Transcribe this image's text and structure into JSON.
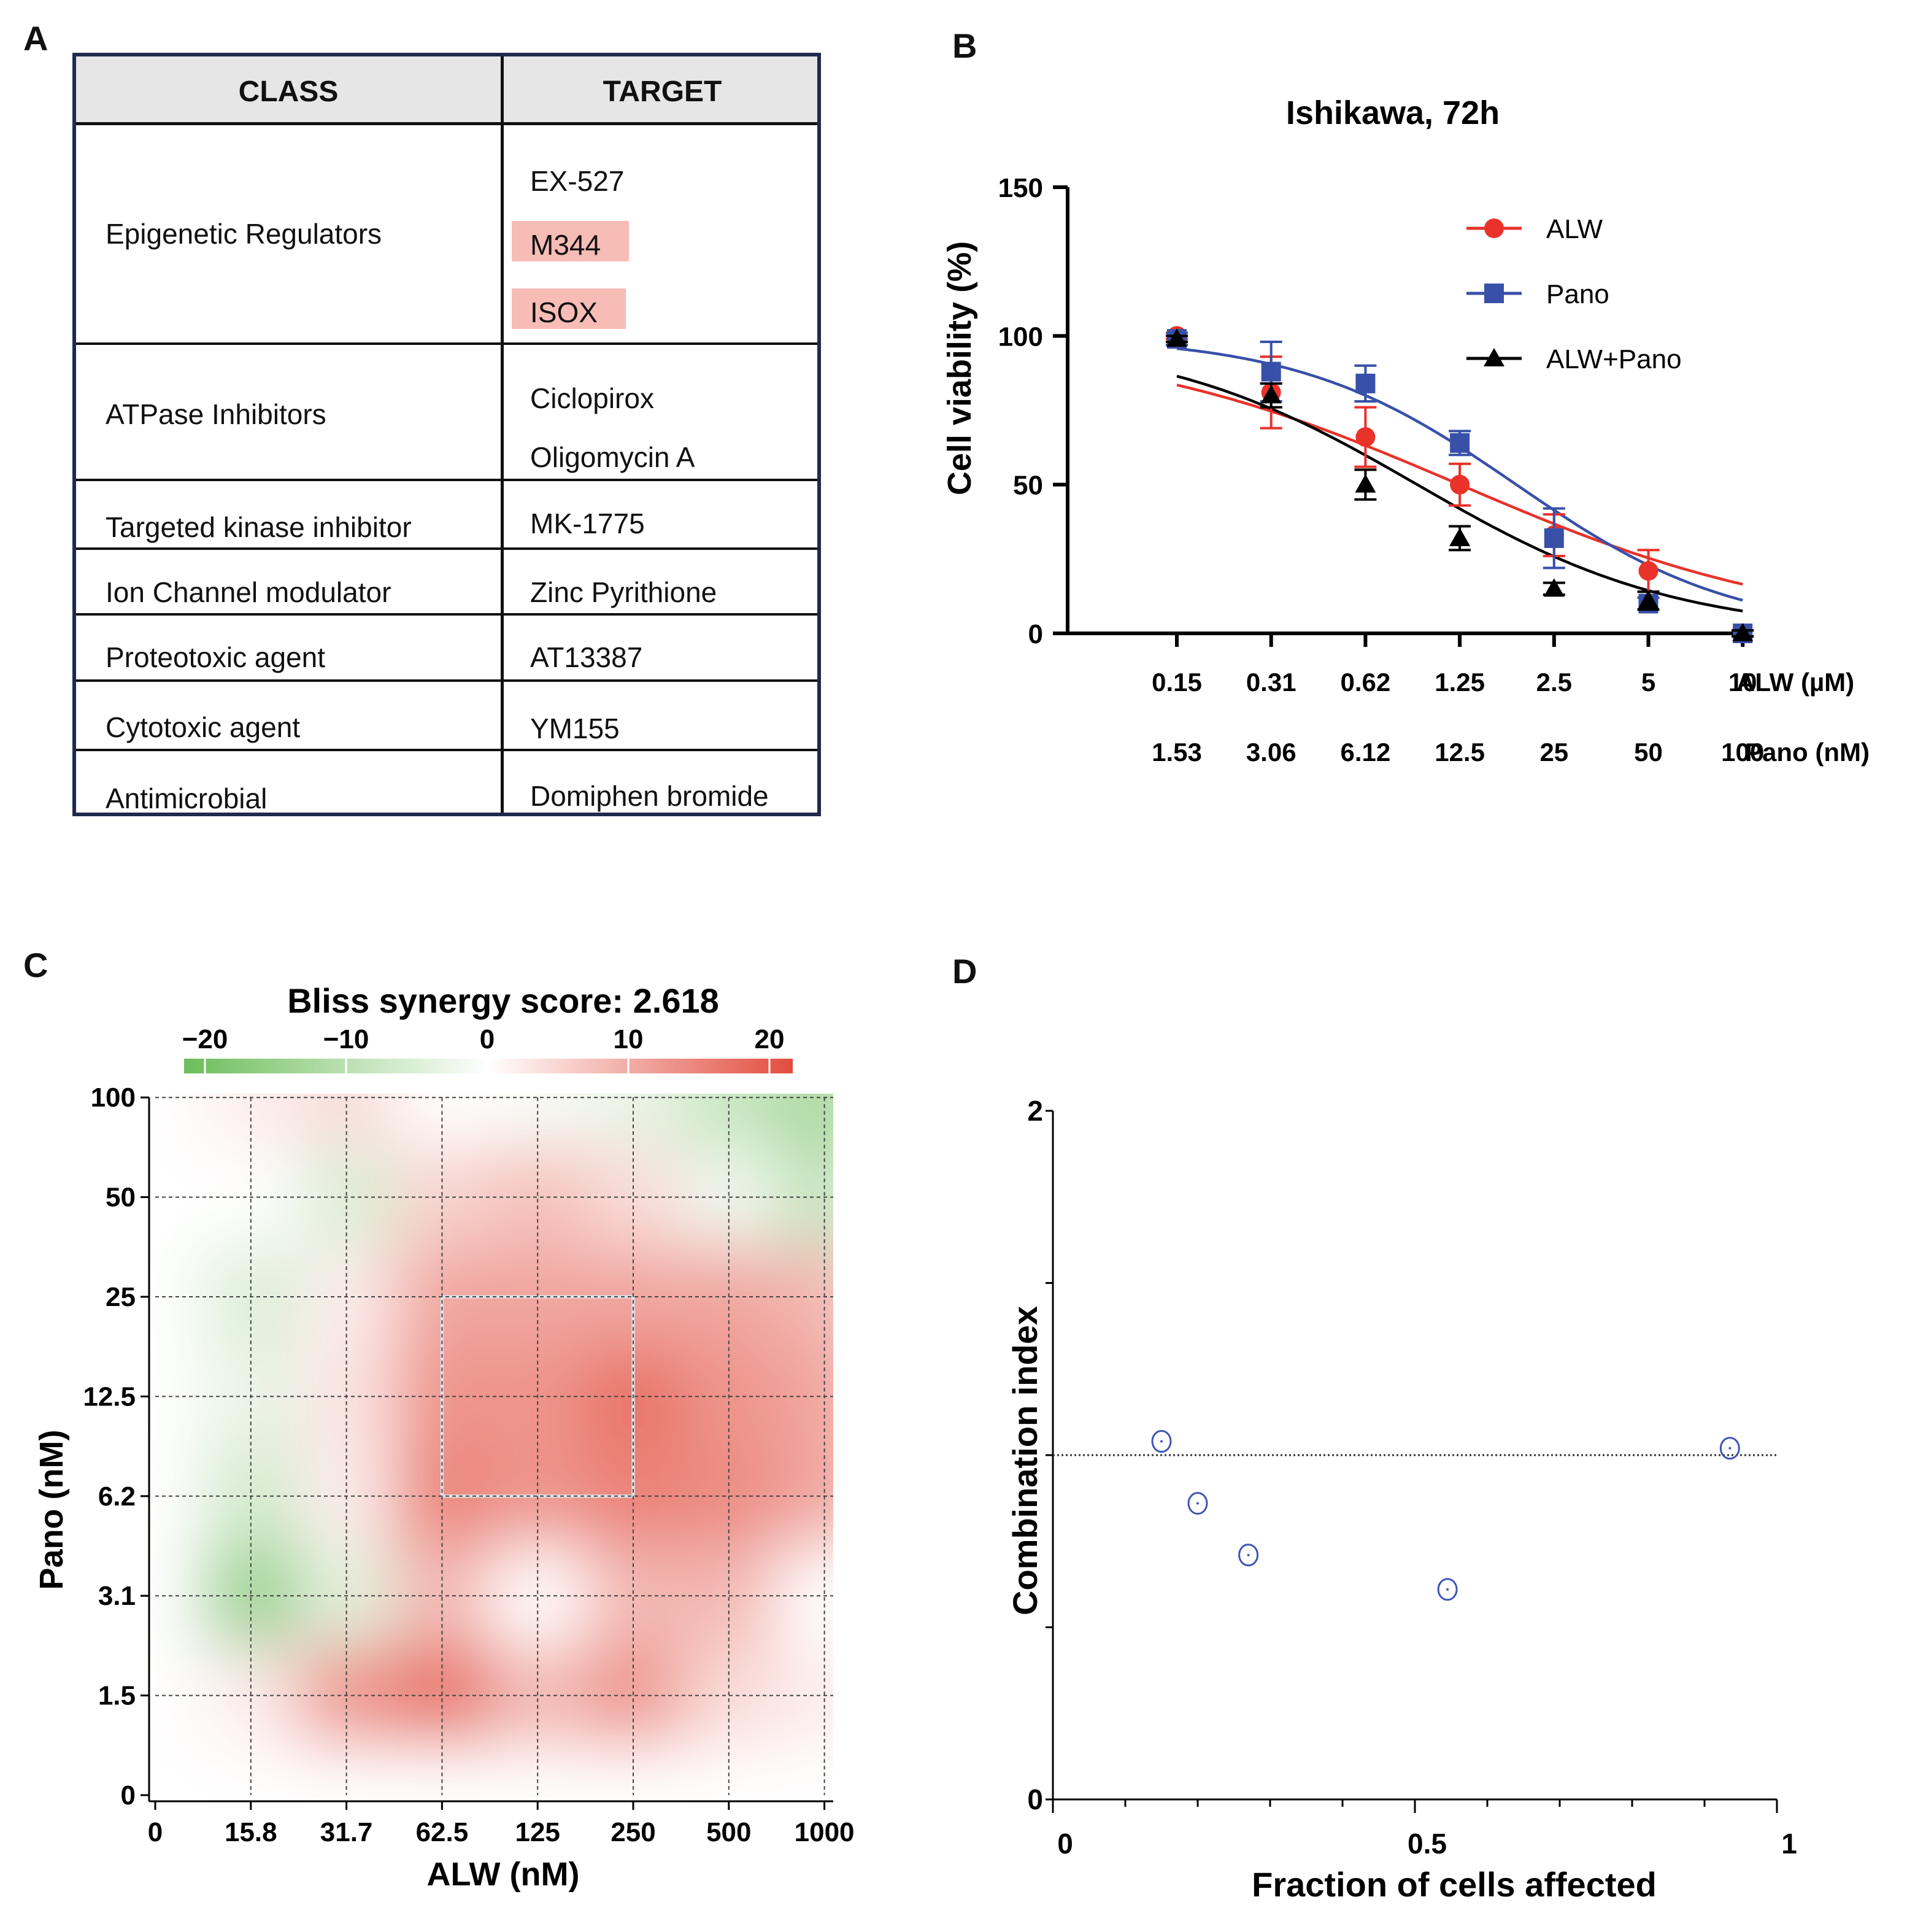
{
  "panels": {
    "a": "A",
    "b": "B",
    "c": "C",
    "d": "D"
  },
  "table": {
    "headers": {
      "class": "CLASS",
      "target": "TARGET"
    },
    "rows": [
      {
        "class": "Epigenetic Regulators",
        "targets": [
          "EX-527",
          "M344",
          "ISOX"
        ],
        "highlighted": [
          false,
          true,
          true
        ]
      },
      {
        "class": "ATPase Inhibitors",
        "targets": [
          "Ciclopirox",
          "Oligomycin A"
        ],
        "highlighted": [
          false,
          false
        ]
      },
      {
        "class": "Targeted kinase inhibitor",
        "targets": [
          "MK-1775"
        ],
        "highlighted": [
          false
        ]
      },
      {
        "class": "Ion Channel modulator",
        "targets": [
          "Zinc Pyrithione"
        ],
        "highlighted": [
          false
        ]
      },
      {
        "class": "Proteotoxic agent",
        "targets": [
          "AT13387"
        ],
        "highlighted": [
          false
        ]
      },
      {
        "class": "Cytotoxic agent",
        "targets": [
          "YM155"
        ],
        "highlighted": [
          false
        ]
      },
      {
        "class": "Antimicrobial",
        "targets": [
          "Domiphen bromide"
        ],
        "highlighted": [
          false
        ]
      }
    ],
    "highlight_color": "#f8bcb6"
  },
  "chart_data": [
    {
      "id": "B",
      "type": "line",
      "title": "Ishikawa, 72h",
      "ylabel": "Cell viability (%)",
      "ylim": [
        0,
        150
      ],
      "yticks": [
        0,
        50,
        100,
        150
      ],
      "categories": [
        "0.15",
        "0.31",
        "0.62",
        "1.25",
        "2.5",
        "5",
        "10"
      ],
      "categories2": [
        "1.53",
        "3.06",
        "6.12",
        "12.5",
        "25",
        "50",
        "100"
      ],
      "xlabel": "ALW (µM)",
      "xlabel2": "Pano (nM)",
      "legend_position": "top-right",
      "series": [
        {
          "name": "ALW",
          "color": "#e8322a",
          "marker": "circle",
          "values": [
            100,
            81,
            66,
            50,
            33,
            21,
            0
          ],
          "errors": [
            1,
            12,
            10,
            7,
            7,
            7,
            1
          ],
          "ic50_index": 3.0,
          "hill": 0.78
        },
        {
          "name": "Pano",
          "color": "#3850a8",
          "marker": "square",
          "values": [
            99,
            88,
            84,
            64,
            32,
            10,
            0
          ],
          "errors": [
            2,
            10,
            6,
            4,
            10,
            2,
            1
          ],
          "ic50_index": 3.6,
          "hill": 1.25
        },
        {
          "name": "ALW+Pano",
          "color": "#000000",
          "marker": "triangle",
          "values": [
            99,
            80,
            50,
            32,
            15,
            11,
            0
          ],
          "errors": [
            1,
            4,
            5,
            4,
            2,
            3,
            1
          ],
          "ic50_index": 2.55,
          "hill": 1.05
        }
      ]
    },
    {
      "id": "C",
      "type": "heatmap",
      "title": "Bliss synergy score: 2.618",
      "xlabel": "ALW (nM)",
      "ylabel": "Pano (nM)",
      "x": [
        "0",
        "15.8",
        "31.7",
        "62.5",
        "125",
        "250",
        "500",
        "1000"
      ],
      "y": [
        "0",
        "1.5",
        "3.1",
        "6.2",
        "12.5",
        "25",
        "50",
        "100"
      ],
      "colorbar_ticks": [
        "−20",
        "−10",
        "0",
        "10",
        "20"
      ],
      "colorbar_range": [
        -20,
        20
      ],
      "colors": {
        "negative": "#6cbd5a",
        "zero": "#ffffff",
        "positive": "#e24d3e"
      },
      "values": [
        [
          0,
          0,
          0,
          0,
          0,
          0,
          0,
          0
        ],
        [
          0,
          2,
          12,
          16,
          8,
          12,
          4,
          2
        ],
        [
          0,
          -14,
          -4,
          8,
          0,
          8,
          8,
          0
        ],
        [
          0,
          -6,
          2,
          14,
          12,
          14,
          13,
          10
        ],
        [
          0,
          -3,
          3,
          12,
          12,
          16,
          12,
          10
        ],
        [
          0,
          -5,
          2,
          10,
          10,
          10,
          10,
          8
        ],
        [
          0,
          0,
          -5,
          5,
          7,
          4,
          -2,
          -8
        ],
        [
          0,
          2,
          4,
          0,
          -1,
          -3,
          -8,
          -12
        ]
      ],
      "highlight_box": {
        "x_range": [
          "62.5",
          "250"
        ],
        "y_range": [
          "6.2",
          "25"
        ]
      }
    },
    {
      "id": "D",
      "type": "scatter",
      "xlabel": "Fraction of cells affected",
      "ylabel": "Combination index",
      "xlim": [
        0,
        1
      ],
      "ylim": [
        0,
        2
      ],
      "xticks": [
        "0",
        "0.5",
        "1"
      ],
      "yticks": [
        "0",
        "2"
      ],
      "reference_line": 1,
      "color": "#3e55b5",
      "points": [
        {
          "x": 0.15,
          "y": 1.04
        },
        {
          "x": 0.2,
          "y": 0.86
        },
        {
          "x": 0.27,
          "y": 0.71
        },
        {
          "x": 0.545,
          "y": 0.61
        },
        {
          "x": 0.935,
          "y": 1.02
        }
      ]
    }
  ]
}
